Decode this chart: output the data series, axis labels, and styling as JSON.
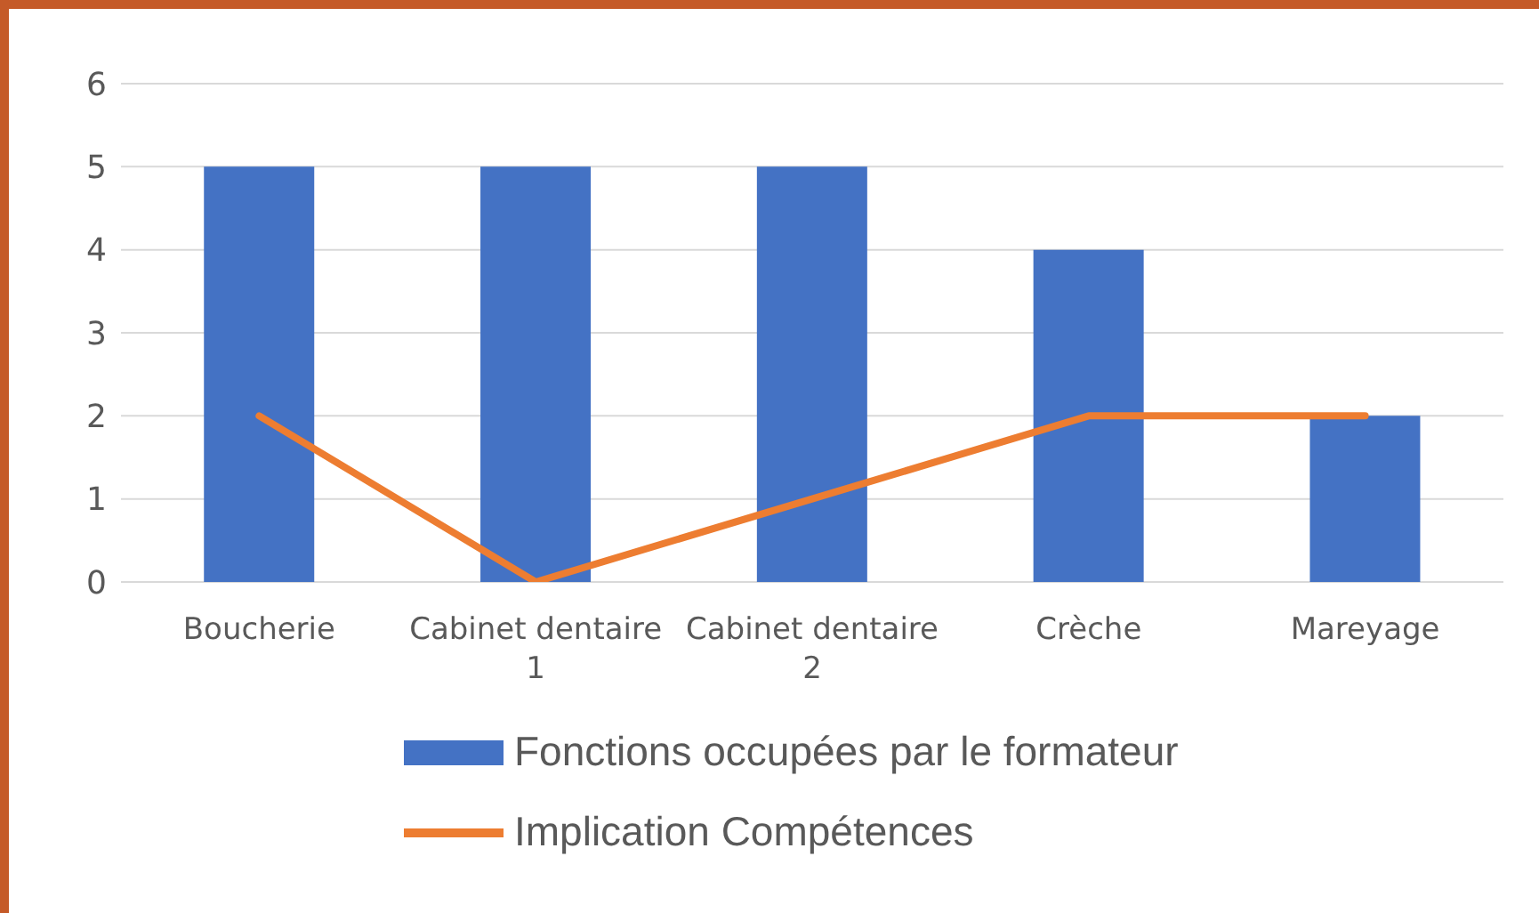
{
  "chart_data": {
    "type": "bar",
    "categories": [
      "Boucherie",
      "Cabinet dentaire 1",
      "Cabinet dentaire 2",
      "Crèche",
      "Mareyage"
    ],
    "series": [
      {
        "name": "Fonctions occupées par le formateur",
        "color": "#4472c4",
        "values": [
          5,
          5,
          5,
          4,
          2
        ]
      },
      {
        "name": "Implication Compétences",
        "type": "line",
        "color": "#ed7d31",
        "values": [
          2,
          0,
          1,
          2,
          2
        ]
      }
    ],
    "ylim": [
      0,
      6
    ],
    "yticks": [
      0,
      1,
      2,
      3,
      4,
      5,
      6
    ],
    "grid": "y",
    "legend": "bottom",
    "marker": "none",
    "line_style": "solid"
  }
}
